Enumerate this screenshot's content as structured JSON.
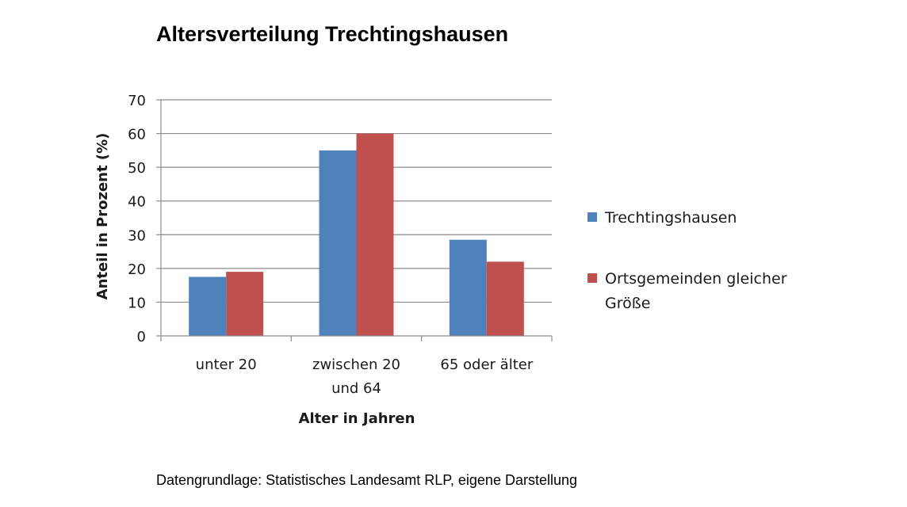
{
  "page": {
    "title": "Altersverteilung Trechtingshausen",
    "source": "Datengrundlage: Statistisches Landesamt RLP, eigene Darstellung"
  },
  "chart_data": {
    "type": "bar",
    "title": "Altersverteilung Trechtingshausen",
    "xlabel": "Alter in Jahren",
    "ylabel": "Anteil in Prozent (%)",
    "ylim": [
      0,
      70
    ],
    "yticks": [
      0,
      10,
      20,
      30,
      40,
      50,
      60,
      70
    ],
    "grid": true,
    "legend_position": "right",
    "categories": [
      [
        "unter 20"
      ],
      [
        "zwischen 20",
        "und 64"
      ],
      [
        "65 oder älter"
      ]
    ],
    "series": [
      {
        "name": "Trechtingshausen",
        "name_lines": [
          "Trechtingshausen"
        ],
        "color": "#4f81bd",
        "values": [
          17.5,
          55,
          28.5
        ]
      },
      {
        "name": "Ortsgemeinden gleicher Größe",
        "name_lines": [
          "Ortsgemeinden gleicher",
          "Größe"
        ],
        "color": "#c0504d",
        "values": [
          19,
          60,
          22
        ]
      }
    ]
  }
}
